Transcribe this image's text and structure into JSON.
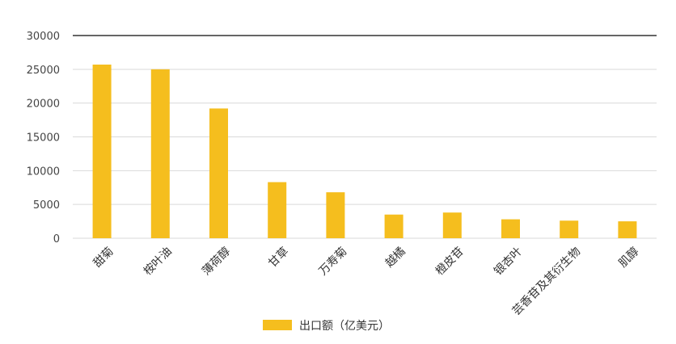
{
  "chart_data": {
    "type": "bar",
    "categories": [
      "甜菊",
      "桉叶油",
      "薄荷醇",
      "甘草",
      "万寿菊",
      "越橘",
      "橙皮苷",
      "银杏叶",
      "芸香苷及其衍生物",
      "肌醇"
    ],
    "series": [
      {
        "name": "出口额（亿美元）",
        "values": [
          25700,
          25000,
          19200,
          8300,
          6800,
          3500,
          3800,
          2800,
          2600,
          2500
        ]
      }
    ],
    "yticks": [
      0,
      5000,
      10000,
      15000,
      20000,
      25000,
      30000
    ],
    "ylim": [
      0,
      30000
    ],
    "grid": true,
    "legend": "bottom",
    "colors": {
      "bar": "#F5BE1E",
      "grid": "#d9d9d9",
      "top_line": "#333333"
    }
  }
}
